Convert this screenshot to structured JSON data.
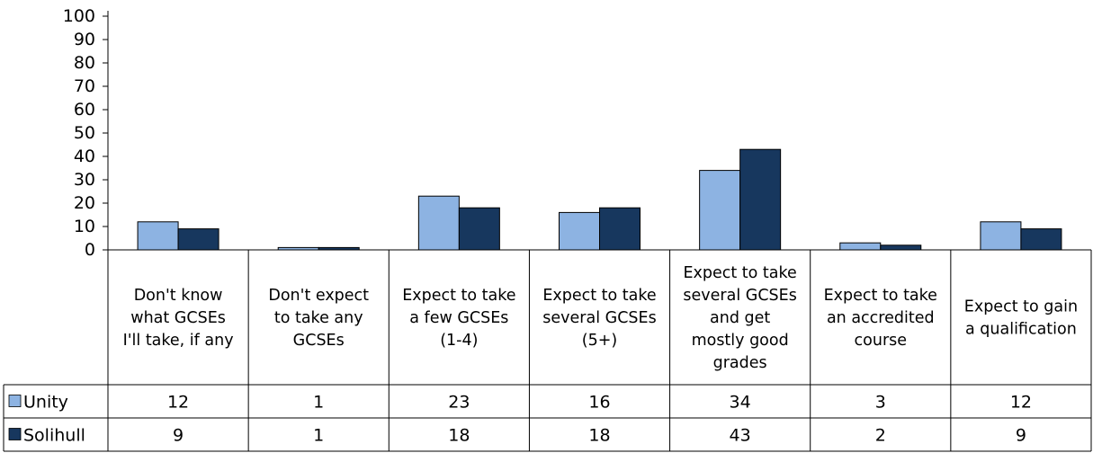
{
  "chart_data": {
    "type": "bar",
    "title": "",
    "xlabel": "",
    "ylabel": "",
    "ylim": [
      0,
      100
    ],
    "yticks": [
      0,
      10,
      20,
      30,
      40,
      50,
      60,
      70,
      80,
      90,
      100
    ],
    "grid": false,
    "legend": "data-table",
    "categories": [
      [
        "Don't know",
        "what GCSEs",
        "I'll take, if any"
      ],
      [
        "Don't expect",
        "to take any",
        "GCSEs"
      ],
      [
        "Expect to take",
        "a few GCSEs",
        "(1-4)"
      ],
      [
        "Expect to take",
        "several GCSEs",
        "(5+)"
      ],
      [
        "Expect to take",
        "several GCSEs",
        "and get",
        "mostly good",
        "grades"
      ],
      [
        "Expect to take",
        "an accredited",
        "course"
      ],
      [
        "Expect to gain",
        "a qualification"
      ]
    ],
    "series": [
      {
        "name": "Unity",
        "color": "#8db3e2",
        "values": [
          12,
          1,
          23,
          16,
          34,
          3,
          12
        ]
      },
      {
        "name": "Solihull",
        "color": "#17375e",
        "values": [
          9,
          1,
          18,
          18,
          43,
          2,
          9
        ]
      }
    ]
  }
}
